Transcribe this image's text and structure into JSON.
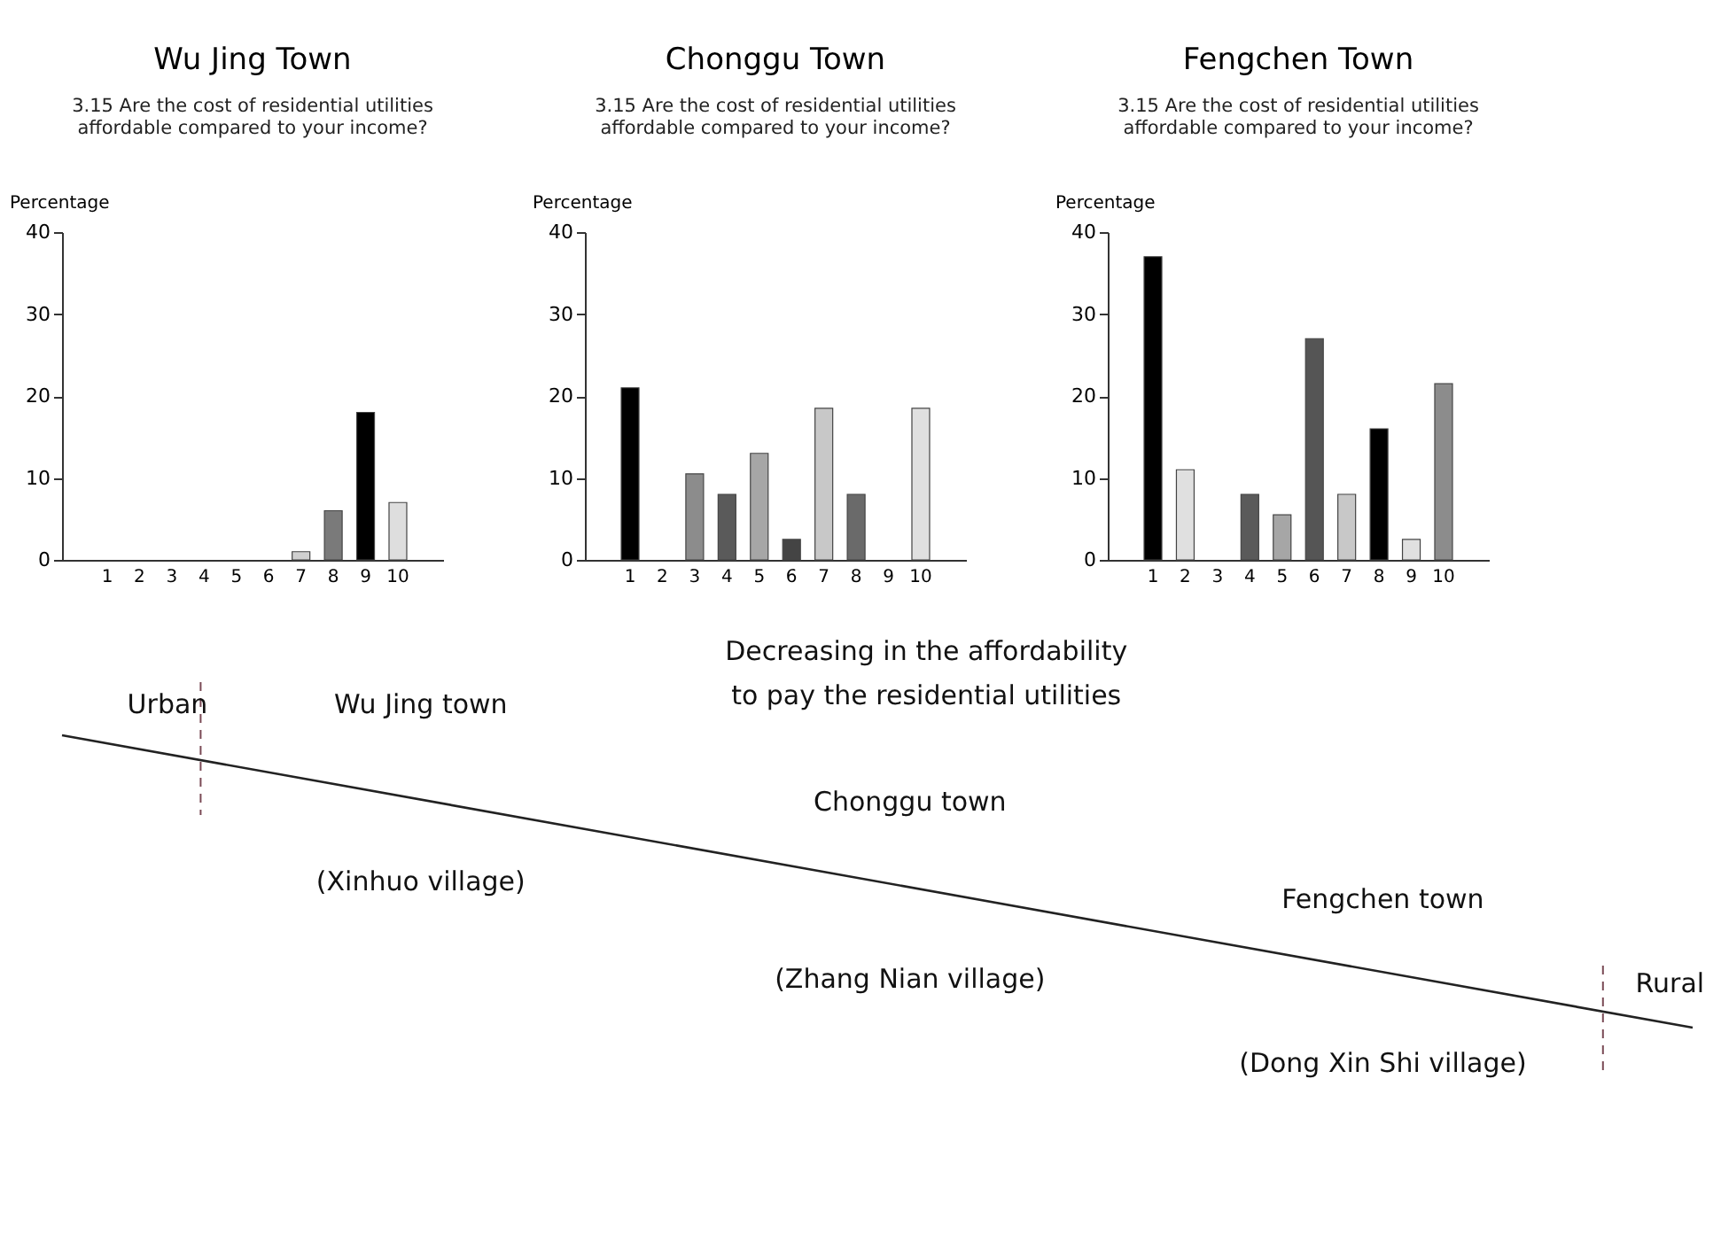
{
  "chart_data": [
    {
      "type": "bar",
      "title": "Wu Jing Town",
      "subtitle": "3.15 Are the cost of residential utilities affordable compared to your income?",
      "ylabel": "Percentage",
      "categories": [
        "1",
        "2",
        "3",
        "4",
        "5",
        "6",
        "7",
        "8",
        "9",
        "10"
      ],
      "values": [
        null,
        null,
        null,
        null,
        null,
        null,
        1,
        6,
        18,
        7
      ],
      "colors": [
        null,
        null,
        null,
        null,
        null,
        null,
        "#d0d0d0",
        "#7a7a7a",
        "#000000",
        "#dedede"
      ],
      "ylim": [
        0,
        40
      ],
      "yticks": [
        0,
        10,
        20,
        30,
        40
      ],
      "grid": false
    },
    {
      "type": "bar",
      "title": "Chonggu Town",
      "subtitle": "3.15 Are the cost of residential utilities affordable compared to your income?",
      "ylabel": "Percentage",
      "categories": [
        "1",
        "2",
        "3",
        "4",
        "5",
        "6",
        "7",
        "8",
        "9",
        "10"
      ],
      "values": [
        21,
        null,
        10.5,
        8,
        13,
        2.5,
        18.5,
        8,
        null,
        18.5
      ],
      "colors": [
        "#000000",
        null,
        "#8c8c8c",
        "#5a5a5a",
        "#a6a6a6",
        "#444444",
        "#c8c8c8",
        "#6a6a6a",
        null,
        "#e0e0e0"
      ],
      "ylim": [
        0,
        40
      ],
      "yticks": [
        0,
        10,
        20,
        30,
        40
      ],
      "grid": false
    },
    {
      "type": "bar",
      "title": "Fengchen Town",
      "subtitle": "3.15 Are the cost of residential utilities affordable compared to your income?",
      "ylabel": "Percentage",
      "categories": [
        "1",
        "2",
        "3",
        "4",
        "5",
        "6",
        "7",
        "8",
        "9",
        "10"
      ],
      "values": [
        37,
        11,
        null,
        8,
        5.5,
        27,
        8,
        16,
        2.5,
        21.5
      ],
      "colors": [
        "#000000",
        "#e0e0e0",
        null,
        "#5a5a5a",
        "#a6a6a6",
        "#555555",
        "#c8c8c8",
        "#000000",
        "#e0e0e0",
        "#8c8c8c"
      ],
      "ylim": [
        0,
        40
      ],
      "yticks": [
        0,
        10,
        20,
        30,
        40
      ],
      "grid": false
    },
    {
      "type": "other",
      "annotations": [
        "Urban",
        "Wu Jing town",
        "(Xinhuo village)",
        "Decreasing in the affordability",
        "to pay the residential utilities",
        "Chonggu town",
        "(Zhang Nian village)",
        "Fengchen town",
        "(Dong Xin Shi village)",
        "Rural"
      ]
    }
  ]
}
